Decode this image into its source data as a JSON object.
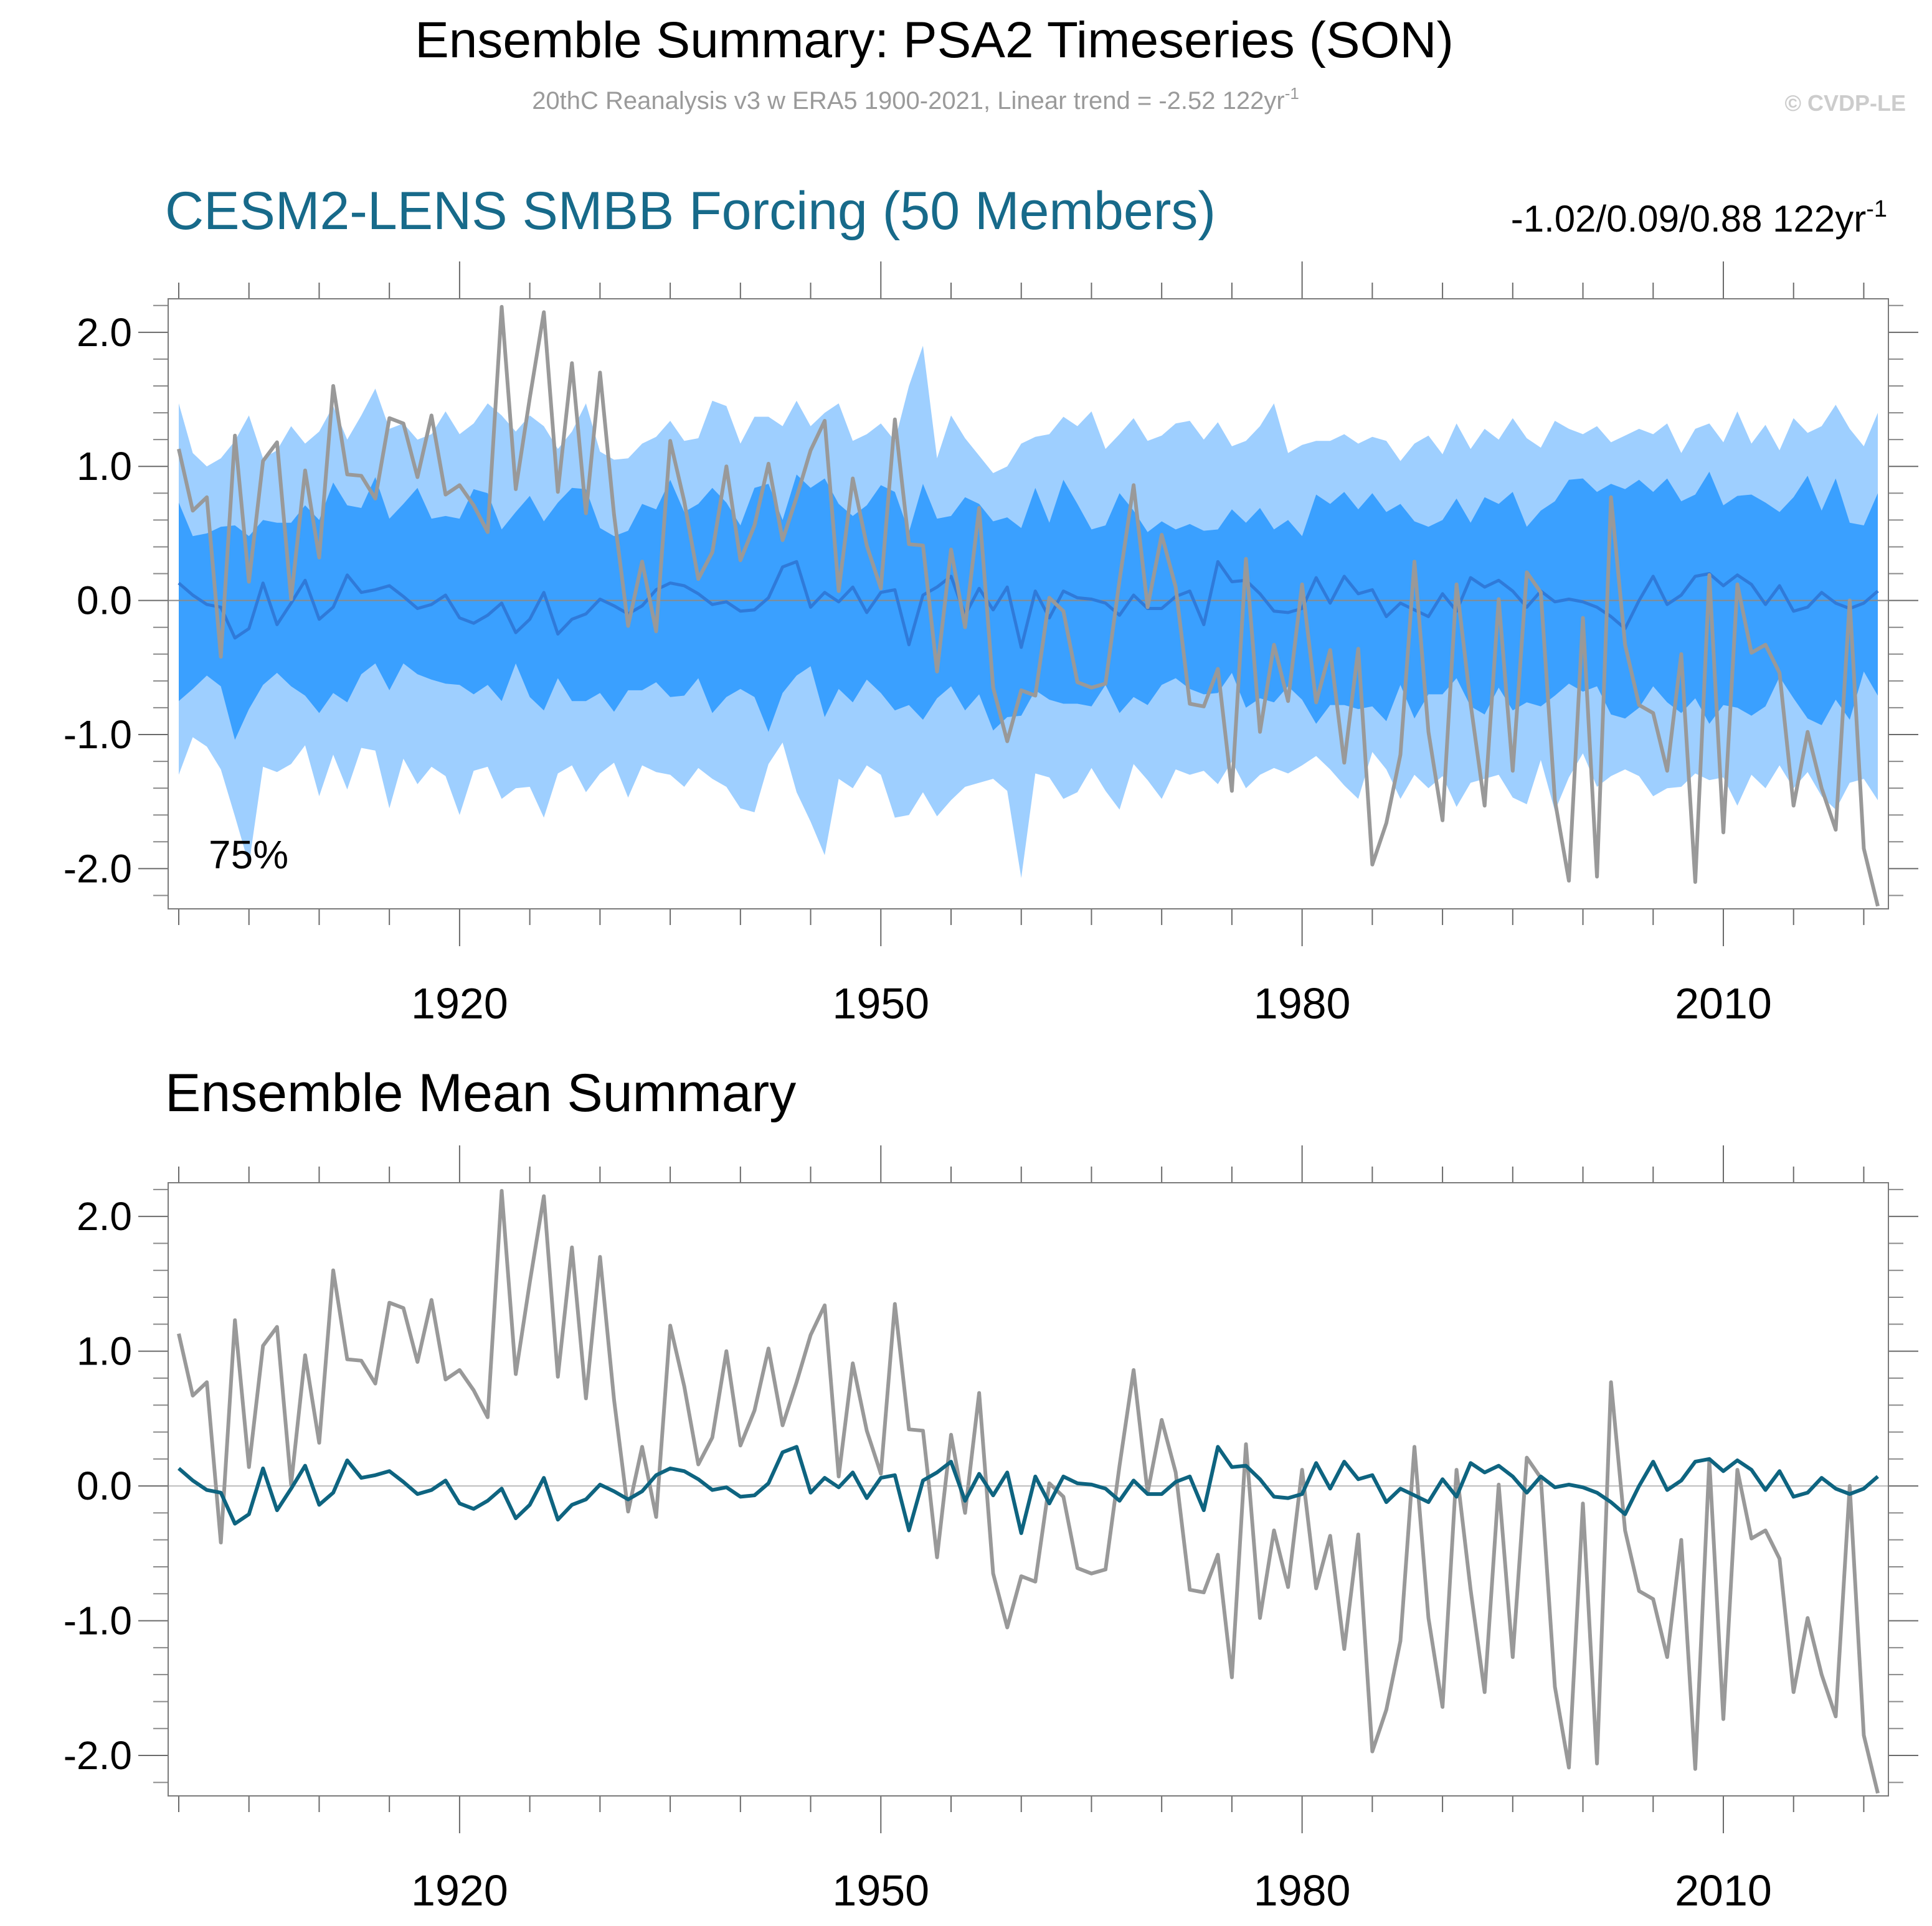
{
  "title": "Ensemble Summary: PSA2 Timeseries (SON)",
  "subtitle_main": "20thC Reanalysis v3 w ERA5 1900-2021, Linear trend = -2.52 122yr",
  "subtitle_sup": "-1",
  "copyright": "© CVDP-LE",
  "colors": {
    "observed": "#999999",
    "ensemble_mean_top": "#2f7ad9",
    "ensemble_mean_bottom": "#0e6480",
    "band_outer": "#9ecfff",
    "band_inner": "#3aa0ff",
    "title_blue": "#176a8a"
  },
  "chart_data": [
    {
      "type": "line",
      "title": "CESM2-LENS SMBB Forcing (50 Members)",
      "trend_label": "-1.02/0.09/0.88 122yr",
      "trend_sup": "-1",
      "band_label": "75%",
      "xlim": [
        1900,
        2021
      ],
      "ylim": [
        -2.3,
        2.25
      ],
      "yticks": [
        {
          "v": 2.0,
          "label": "2.0"
        },
        {
          "v": 1.0,
          "label": "1.0"
        },
        {
          "v": 0.0,
          "label": "0.0"
        },
        {
          "v": -1.0,
          "label": "-1.0"
        },
        {
          "v": -2.0,
          "label": "-2.0"
        }
      ],
      "xticks": [
        {
          "v": 1920,
          "label": "1920"
        },
        {
          "v": 1950,
          "label": "1950"
        },
        {
          "v": 1980,
          "label": "1980"
        },
        {
          "v": 2010,
          "label": "2010"
        }
      ],
      "x": [
        1900,
        1901,
        1902,
        1903,
        1904,
        1905,
        1906,
        1907,
        1908,
        1909,
        1910,
        1911,
        1912,
        1913,
        1914,
        1915,
        1916,
        1917,
        1918,
        1919,
        1920,
        1921,
        1922,
        1923,
        1924,
        1925,
        1926,
        1927,
        1928,
        1929,
        1930,
        1931,
        1932,
        1933,
        1934,
        1935,
        1936,
        1937,
        1938,
        1939,
        1940,
        1941,
        1942,
        1943,
        1944,
        1945,
        1946,
        1947,
        1948,
        1949,
        1950,
        1951,
        1952,
        1953,
        1954,
        1955,
        1956,
        1957,
        1958,
        1959,
        1960,
        1961,
        1962,
        1963,
        1964,
        1965,
        1966,
        1967,
        1968,
        1969,
        1970,
        1971,
        1972,
        1973,
        1974,
        1975,
        1976,
        1977,
        1978,
        1979,
        1980,
        1981,
        1982,
        1983,
        1984,
        1985,
        1986,
        1987,
        1988,
        1989,
        1990,
        1991,
        1992,
        1993,
        1994,
        1995,
        1996,
        1997,
        1998,
        1999,
        2000,
        2001,
        2002,
        2003,
        2004,
        2005,
        2006,
        2007,
        2008,
        2009,
        2010,
        2011,
        2012,
        2013,
        2014,
        2015,
        2016,
        2017,
        2018,
        2019,
        2020,
        2021
      ],
      "series": [
        {
          "name": "ensemble-min-max-upper",
          "values": [
            1.47,
            1.1,
            1.0,
            1.06,
            1.19,
            1.38,
            1.06,
            1.12,
            1.3,
            1.17,
            1.26,
            1.45,
            1.2,
            1.38,
            1.58,
            1.28,
            1.32,
            1.2,
            1.24,
            1.41,
            1.24,
            1.32,
            1.47,
            1.38,
            1.26,
            1.38,
            1.3,
            1.13,
            1.26,
            1.47,
            1.11,
            1.05,
            1.06,
            1.17,
            1.22,
            1.34,
            1.19,
            1.21,
            1.49,
            1.45,
            1.17,
            1.37,
            1.37,
            1.3,
            1.49,
            1.3,
            1.4,
            1.47,
            1.19,
            1.24,
            1.32,
            1.19,
            1.6,
            1.9,
            1.06,
            1.38,
            1.21,
            1.08,
            0.95,
            1.0,
            1.17,
            1.22,
            1.24,
            1.37,
            1.3,
            1.41,
            1.13,
            1.24,
            1.36,
            1.19,
            1.23,
            1.32,
            1.34,
            1.2,
            1.33,
            1.15,
            1.19,
            1.3,
            1.47,
            1.1,
            1.16,
            1.19,
            1.19,
            1.24,
            1.17,
            1.22,
            1.19,
            1.04,
            1.17,
            1.23,
            1.09,
            1.32,
            1.13,
            1.28,
            1.2,
            1.36,
            1.21,
            1.14,
            1.34,
            1.28,
            1.24,
            1.3,
            1.18,
            1.23,
            1.28,
            1.24,
            1.32,
            1.1,
            1.28,
            1.32,
            1.18,
            1.41,
            1.17,
            1.31,
            1.12,
            1.36,
            1.25,
            1.3,
            1.46,
            1.28,
            1.15,
            1.4
          ]
        },
        {
          "name": "ensemble-75-upper",
          "values": [
            0.73,
            0.48,
            0.5,
            0.55,
            0.56,
            0.48,
            0.6,
            0.58,
            0.58,
            0.71,
            0.6,
            0.88,
            0.71,
            0.69,
            0.92,
            0.61,
            0.72,
            0.84,
            0.61,
            0.63,
            0.61,
            0.83,
            0.8,
            0.53,
            0.66,
            0.78,
            0.59,
            0.73,
            0.84,
            0.83,
            0.54,
            0.48,
            0.52,
            0.72,
            0.68,
            0.9,
            0.66,
            0.72,
            0.84,
            0.73,
            0.56,
            0.84,
            0.87,
            0.6,
            0.94,
            0.84,
            0.91,
            0.72,
            0.63,
            0.71,
            0.86,
            0.81,
            0.51,
            0.87,
            0.61,
            0.63,
            0.77,
            0.72,
            0.59,
            0.62,
            0.54,
            0.84,
            0.58,
            0.9,
            0.72,
            0.53,
            0.56,
            0.8,
            0.67,
            0.51,
            0.59,
            0.53,
            0.57,
            0.52,
            0.53,
            0.68,
            0.58,
            0.69,
            0.53,
            0.6,
            0.48,
            0.79,
            0.72,
            0.81,
            0.68,
            0.8,
            0.66,
            0.72,
            0.59,
            0.55,
            0.6,
            0.76,
            0.58,
            0.77,
            0.72,
            0.81,
            0.55,
            0.67,
            0.74,
            0.9,
            0.91,
            0.81,
            0.87,
            0.83,
            0.9,
            0.81,
            0.91,
            0.74,
            0.79,
            0.96,
            0.71,
            0.78,
            0.79,
            0.73,
            0.66,
            0.77,
            0.93,
            0.67,
            0.91,
            0.58,
            0.56,
            0.8
          ]
        },
        {
          "name": "ensemble-75-lower",
          "values": [
            -0.75,
            -0.66,
            -0.56,
            -0.64,
            -1.04,
            -0.81,
            -0.63,
            -0.54,
            -0.64,
            -0.71,
            -0.84,
            -0.69,
            -0.76,
            -0.55,
            -0.47,
            -0.67,
            -0.47,
            -0.55,
            -0.59,
            -0.62,
            -0.63,
            -0.7,
            -0.63,
            -0.75,
            -0.47,
            -0.72,
            -0.82,
            -0.58,
            -0.75,
            -0.75,
            -0.69,
            -0.83,
            -0.67,
            -0.67,
            -0.61,
            -0.72,
            -0.71,
            -0.58,
            -0.84,
            -0.72,
            -0.66,
            -0.72,
            -0.98,
            -0.69,
            -0.56,
            -0.49,
            -0.87,
            -0.66,
            -0.76,
            -0.59,
            -0.69,
            -0.82,
            -0.78,
            -0.89,
            -0.73,
            -0.64,
            -0.82,
            -0.7,
            -0.97,
            -0.87,
            -0.86,
            -0.67,
            -0.74,
            -0.77,
            -0.77,
            -0.79,
            -0.63,
            -0.84,
            -0.72,
            -0.78,
            -0.63,
            -0.58,
            -0.66,
            -0.7,
            -0.69,
            -0.54,
            -0.8,
            -0.73,
            -0.76,
            -0.64,
            -0.74,
            -0.92,
            -0.78,
            -0.78,
            -0.81,
            -0.79,
            -0.9,
            -0.63,
            -0.88,
            -0.7,
            -0.7,
            -0.58,
            -0.79,
            -0.85,
            -0.65,
            -0.82,
            -0.76,
            -0.79,
            -0.71,
            -0.62,
            -0.68,
            -0.64,
            -0.85,
            -0.88,
            -0.8,
            -0.64,
            -0.76,
            -0.84,
            -0.73,
            -0.92,
            -0.78,
            -0.8,
            -0.86,
            -0.79,
            -0.57,
            -0.73,
            -0.88,
            -0.93,
            -0.74,
            -0.89,
            -0.53,
            -0.71
          ]
        },
        {
          "name": "ensemble-min-max-lower",
          "values": [
            -1.3,
            -1.02,
            -1.09,
            -1.26,
            -1.61,
            -1.97,
            -1.24,
            -1.28,
            -1.22,
            -1.08,
            -1.46,
            -1.15,
            -1.41,
            -1.1,
            -1.12,
            -1.55,
            -1.18,
            -1.37,
            -1.24,
            -1.31,
            -1.6,
            -1.27,
            -1.24,
            -1.48,
            -1.4,
            -1.39,
            -1.62,
            -1.29,
            -1.23,
            -1.43,
            -1.29,
            -1.21,
            -1.47,
            -1.23,
            -1.28,
            -1.3,
            -1.39,
            -1.25,
            -1.33,
            -1.39,
            -1.55,
            -1.58,
            -1.22,
            -1.06,
            -1.43,
            -1.65,
            -1.9,
            -1.33,
            -1.4,
            -1.23,
            -1.3,
            -1.62,
            -1.6,
            -1.43,
            -1.61,
            -1.49,
            -1.39,
            -1.36,
            -1.33,
            -1.42,
            -2.07,
            -1.29,
            -1.32,
            -1.48,
            -1.43,
            -1.25,
            -1.42,
            -1.56,
            -1.22,
            -1.34,
            -1.48,
            -1.26,
            -1.3,
            -1.27,
            -1.37,
            -1.2,
            -1.4,
            -1.3,
            -1.25,
            -1.29,
            -1.23,
            -1.16,
            -1.26,
            -1.38,
            -1.48,
            -1.13,
            -1.26,
            -1.48,
            -1.3,
            -1.4,
            -1.31,
            -1.54,
            -1.36,
            -1.33,
            -1.3,
            -1.47,
            -1.52,
            -1.19,
            -1.57,
            -1.32,
            -1.14,
            -1.39,
            -1.31,
            -1.26,
            -1.31,
            -1.46,
            -1.4,
            -1.39,
            -1.29,
            -1.34,
            -1.32,
            -1.53,
            -1.3,
            -1.4,
            -1.23,
            -1.4,
            -1.28,
            -1.46,
            -1.56,
            -1.36,
            -1.33,
            -1.49
          ]
        },
        {
          "name": "ensemble-mean",
          "values": [
            0.13,
            0.04,
            -0.03,
            -0.05,
            -0.28,
            -0.21,
            0.13,
            -0.18,
            -0.02,
            0.15,
            -0.14,
            -0.05,
            0.19,
            0.06,
            0.08,
            0.11,
            0.03,
            -0.06,
            -0.03,
            0.04,
            -0.13,
            -0.17,
            -0.11,
            -0.02,
            -0.24,
            -0.14,
            0.06,
            -0.25,
            -0.14,
            -0.1,
            0.01,
            -0.04,
            -0.1,
            -0.04,
            0.08,
            0.13,
            0.11,
            0.05,
            -0.03,
            -0.01,
            -0.08,
            -0.07,
            0.02,
            0.25,
            0.29,
            -0.05,
            0.06,
            -0.01,
            0.1,
            -0.09,
            0.06,
            0.08,
            -0.33,
            0.04,
            0.1,
            0.18,
            -0.11,
            0.09,
            -0.07,
            0.1,
            -0.35,
            0.07,
            -0.13,
            0.07,
            0.02,
            0.01,
            -0.02,
            -0.11,
            0.04,
            -0.06,
            -0.06,
            0.03,
            0.07,
            -0.18,
            0.29,
            0.14,
            0.15,
            0.05,
            -0.08,
            -0.09,
            -0.06,
            0.17,
            -0.02,
            0.18,
            0.05,
            0.08,
            -0.12,
            -0.02,
            -0.07,
            -0.12,
            0.05,
            -0.08,
            0.17,
            0.1,
            0.15,
            0.07,
            -0.05,
            0.07,
            -0.01,
            0.01,
            -0.01,
            -0.05,
            -0.12,
            -0.21,
            0.0,
            0.18,
            -0.03,
            0.04,
            0.18,
            0.2,
            0.11,
            0.19,
            0.12,
            -0.03,
            0.11,
            -0.08,
            -0.05,
            0.06,
            -0.02,
            -0.06,
            -0.02,
            0.07
          ]
        },
        {
          "name": "observed",
          "values": [
            1.13,
            0.67,
            0.77,
            -0.42,
            1.23,
            0.14,
            1.04,
            1.18,
            0.01,
            0.97,
            0.32,
            1.6,
            0.94,
            0.93,
            0.76,
            1.36,
            1.32,
            0.92,
            1.38,
            0.79,
            0.86,
            0.71,
            0.51,
            2.19,
            0.83,
            1.51,
            2.15,
            0.81,
            1.77,
            0.65,
            1.7,
            0.64,
            -0.19,
            0.29,
            -0.23,
            1.19,
            0.74,
            0.16,
            0.36,
            1.0,
            0.3,
            0.56,
            1.02,
            0.45,
            0.77,
            1.12,
            1.34,
            0.07,
            0.91,
            0.41,
            0.09,
            1.35,
            0.42,
            0.41,
            -0.53,
            0.38,
            -0.2,
            0.69,
            -0.65,
            -1.05,
            -0.67,
            -0.71,
            0.02,
            -0.08,
            -0.61,
            -0.65,
            -0.62,
            0.15,
            0.86,
            -0.05,
            0.49,
            0.1,
            -0.77,
            -0.79,
            -0.51,
            -1.42,
            0.31,
            -0.98,
            -0.33,
            -0.75,
            0.12,
            -0.76,
            -0.37,
            -1.21,
            -0.36,
            -1.97,
            -1.66,
            -1.15,
            0.29,
            -0.98,
            -1.64,
            0.12,
            -0.77,
            -1.53,
            0.01,
            -1.27,
            0.21,
            0.06,
            -1.49,
            -2.09,
            -0.13,
            -2.06,
            0.77,
            -0.33,
            -0.78,
            -0.84,
            -1.27,
            -0.4,
            -2.1,
            0.19,
            -1.73,
            0.12,
            -0.39,
            -0.33,
            -0.54,
            -1.53,
            -0.98,
            -1.4,
            -1.71,
            0.0,
            -1.85,
            -2.28
          ]
        }
      ]
    },
    {
      "type": "line",
      "title": "Ensemble Mean Summary",
      "xlim": [
        1900,
        2021
      ],
      "ylim": [
        -2.3,
        2.25
      ],
      "yticks": [
        {
          "v": 2.0,
          "label": "2.0"
        },
        {
          "v": 1.0,
          "label": "1.0"
        },
        {
          "v": 0.0,
          "label": "0.0"
        },
        {
          "v": -1.0,
          "label": "-1.0"
        },
        {
          "v": -2.0,
          "label": "-2.0"
        }
      ],
      "xticks": [
        {
          "v": 1920,
          "label": "1920"
        },
        {
          "v": 1950,
          "label": "1950"
        },
        {
          "v": 1980,
          "label": "1980"
        },
        {
          "v": 2010,
          "label": "2010"
        }
      ],
      "series_ref": [
        "observed",
        "ensemble-mean"
      ]
    }
  ]
}
